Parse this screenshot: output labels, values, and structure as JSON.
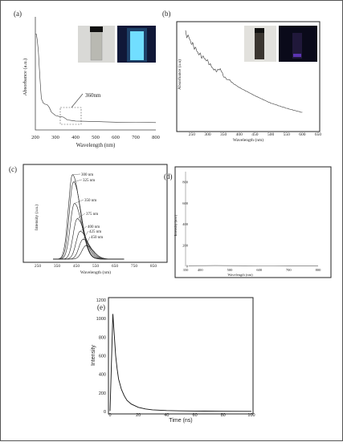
{
  "chart_data": [
    {
      "panel": "(a)",
      "type": "line",
      "xlabel": "Wavelength (nm)",
      "ylabel": "Absorbance (a.u.)",
      "xlim": [
        200,
        800
      ],
      "xticks": [
        "200",
        "300",
        "400",
        "500",
        "600",
        "700",
        "800"
      ],
      "ylim": [
        0,
        1
      ],
      "annotation": "360nm",
      "series": [
        {
          "x": [
            200,
            205,
            210,
            215,
            220,
            225,
            230,
            240,
            250,
            260,
            270,
            280,
            300,
            320,
            340,
            360,
            380,
            400,
            450,
            500,
            600,
            700,
            800
          ],
          "y": [
            0.86,
            0.86,
            0.8,
            0.7,
            0.55,
            0.4,
            0.28,
            0.24,
            0.23,
            0.225,
            0.2,
            0.16,
            0.13,
            0.12,
            0.115,
            0.09,
            0.085,
            0.08,
            0.078,
            0.075,
            0.07,
            0.068,
            0.066
          ]
        }
      ],
      "insets": [
        "vial under daylight",
        "vial under UV light (blue glow)"
      ]
    },
    {
      "panel": "(b)",
      "type": "line",
      "xlabel": "Wavelength (nm)",
      "ylabel": "Absorbance (a.u)",
      "xlim": [
        230,
        650
      ],
      "xticks": [
        "250",
        "300",
        "350",
        "400",
        "450",
        "500",
        "550",
        "600",
        "650"
      ],
      "ylim": [
        0,
        1
      ],
      "series": [
        {
          "x": [
            230,
            240,
            250,
            260,
            270,
            280,
            290,
            300,
            310,
            320,
            330,
            340,
            350,
            360,
            370,
            380,
            400,
            450,
            500,
            550,
            600
          ],
          "y": [
            0.92,
            0.88,
            0.82,
            0.78,
            0.73,
            0.7,
            0.68,
            0.65,
            0.61,
            0.57,
            0.56,
            0.58,
            0.51,
            0.48,
            0.47,
            0.44,
            0.4,
            0.32,
            0.25,
            0.2,
            0.16
          ]
        }
      ],
      "insets": [
        "vial under daylight",
        "vial under UV light (dark)"
      ]
    },
    {
      "panel": "(c)",
      "type": "line",
      "xlabel": "Wavelength (nm)",
      "ylabel": "Intensity (a.u.)",
      "xlim": [
        250,
        850
      ],
      "xticks": [
        "250",
        "350",
        "450",
        "550",
        "650",
        "750",
        "850"
      ],
      "ylim": [
        0,
        1
      ],
      "series": [
        {
          "name": "300 nm",
          "peak": 430,
          "amp": 0.94
        },
        {
          "name": "325 nm",
          "peak": 435,
          "amp": 0.86
        },
        {
          "name": "350 nm",
          "peak": 440,
          "amp": 0.62
        },
        {
          "name": "375 nm",
          "peak": 455,
          "amp": 0.45
        },
        {
          "name": "400 nm",
          "peak": 470,
          "amp": 0.31
        },
        {
          "name": "425 nm",
          "peak": 485,
          "amp": 0.22
        },
        {
          "name": "450 nm",
          "peak": 500,
          "amp": 0.15
        }
      ]
    },
    {
      "panel": "(d)",
      "type": "line",
      "xlabel": "Wavelength (nm)",
      "ylabel": "Intensity (a.u.)",
      "xlim": [
        350,
        800
      ],
      "xticks": [
        "350",
        "400",
        "500",
        "600",
        "700",
        "800"
      ],
      "ylim": [
        0,
        900
      ],
      "yticks": [
        "0",
        "200",
        "400",
        "600",
        "800"
      ],
      "series": [
        {
          "x": [
            360,
            400,
            450,
            500,
            550,
            600,
            650,
            700,
            750,
            800
          ],
          "y": [
            5,
            6,
            7,
            6,
            5,
            4,
            4,
            3,
            3,
            3
          ]
        }
      ]
    },
    {
      "panel": "(e)",
      "type": "line",
      "xlabel": "Time (ns)",
      "ylabel": "Intensity",
      "xlim": [
        0,
        100
      ],
      "xticks": [
        "0",
        "20",
        "40",
        "60",
        "80",
        "100"
      ],
      "ylim": [
        0,
        1200
      ],
      "yticks": [
        "0",
        "200",
        "400",
        "600",
        "800",
        "1000",
        "1200"
      ],
      "series": [
        {
          "x": [
            0,
            2,
            3,
            4,
            5,
            6,
            8,
            10,
            12,
            15,
            20,
            25,
            30,
            40,
            50,
            60,
            80,
            100
          ],
          "y": [
            5,
            1050,
            820,
            600,
            460,
            350,
            240,
            170,
            120,
            80,
            45,
            28,
            18,
            10,
            7,
            5,
            3,
            2
          ]
        }
      ]
    }
  ]
}
